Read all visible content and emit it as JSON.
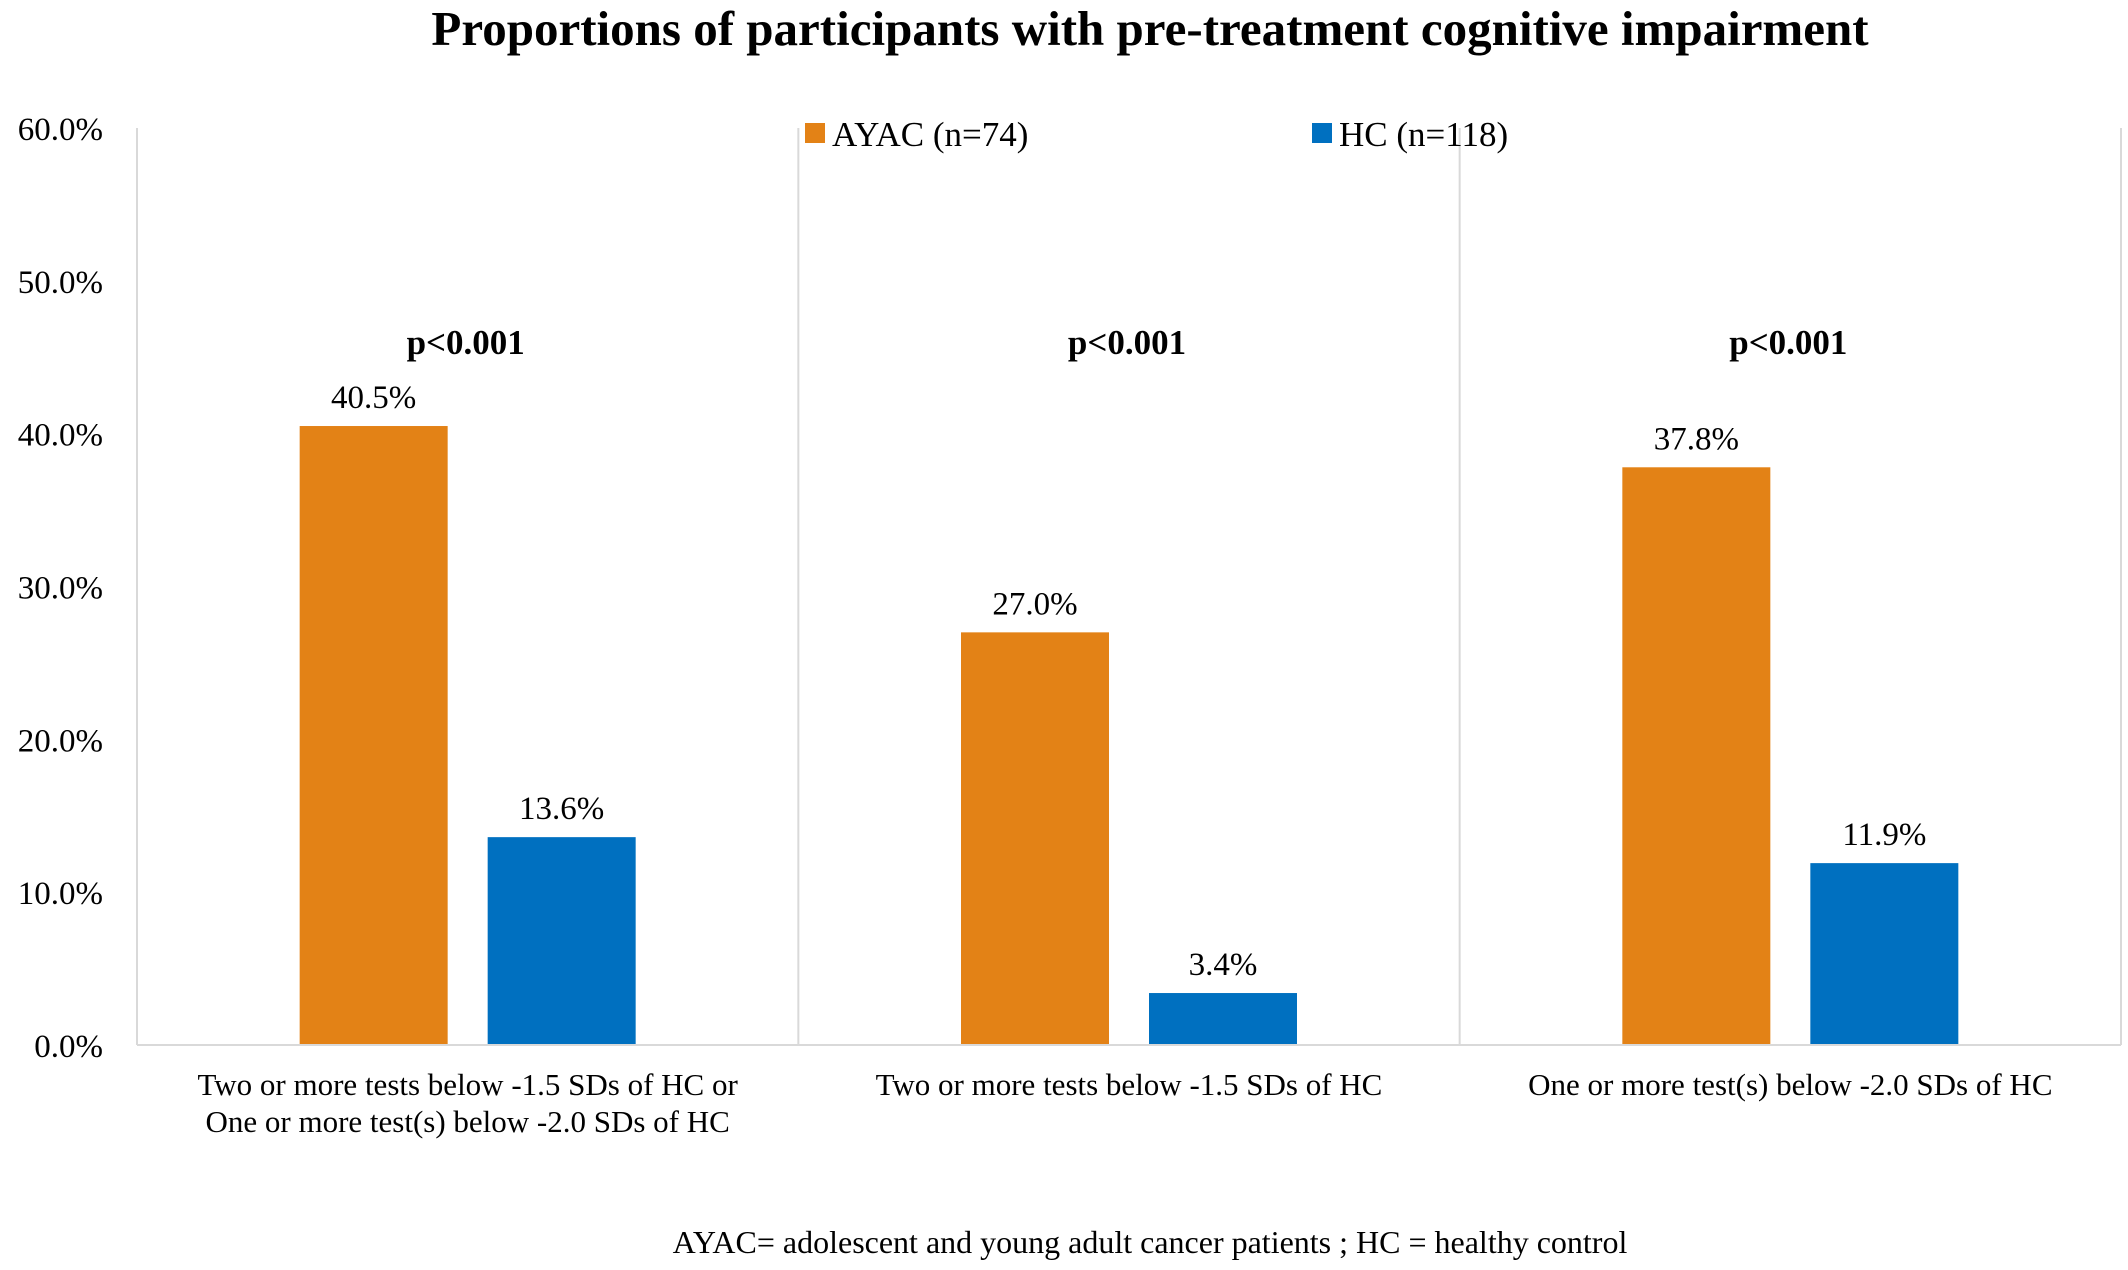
{
  "chart_data": {
    "type": "bar",
    "title": "Proportions of participants with pre-treatment cognitive impairment",
    "categories": [
      [
        "Two or more tests below -1.5 SDs of HC or",
        "One or more test(s) below -2.0 SDs of HC"
      ],
      [
        "Two or more tests below -1.5 SDs of HC"
      ],
      [
        "One or more test(s) below -2.0 SDs of HC"
      ]
    ],
    "series": [
      {
        "name": "AYAC (n=74)",
        "color": "#E38216",
        "values": [
          40.5,
          27.0,
          37.8
        ],
        "labels": [
          "40.5%",
          "27.0%",
          "37.8%"
        ]
      },
      {
        "name": "HC (n=118)",
        "color": "#0070C0",
        "values": [
          13.6,
          3.4,
          11.9
        ],
        "labels": [
          "13.6%",
          "3.4%",
          "11.9%"
        ]
      }
    ],
    "annotations": [
      "p<0.001",
      "p<0.001",
      "p<0.001"
    ],
    "ylim": [
      0,
      60
    ],
    "yticks": [
      0,
      10,
      20,
      30,
      40,
      50,
      60
    ],
    "ytick_labels": [
      "0.0%",
      "10.0%",
      "20.0%",
      "30.0%",
      "40.0%",
      "50.0%",
      "60.0%"
    ],
    "xlabel": "",
    "ylabel": "",
    "legend_position": "top-center",
    "grid": false,
    "footnote": "AYAC= adolescent and young adult cancer patients ; HC = healthy control"
  }
}
